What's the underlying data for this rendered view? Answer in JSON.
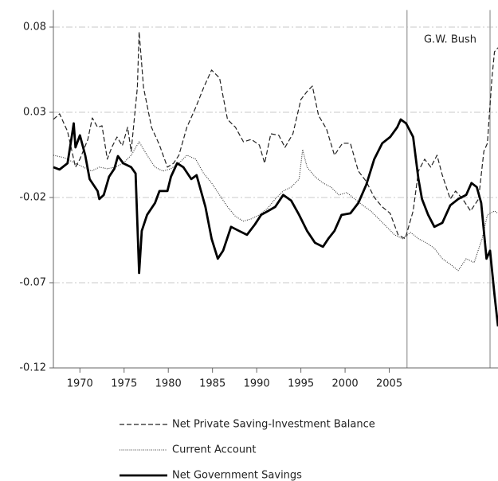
{
  "chart_data": {
    "type": "line",
    "annotation": "G.W. Bush",
    "vlines": [
      2007.0,
      2016.4
    ],
    "xlim": [
      1967.0,
      2017.3
    ],
    "xticks": [
      1970,
      1975,
      1980,
      1985,
      1990,
      1995,
      2000,
      2005
    ],
    "ylim": [
      -0.12,
      0.09
    ],
    "yticks": [
      0.08,
      0.03,
      -0.02,
      -0.07,
      -0.12
    ],
    "grid": true,
    "legend": "bottom",
    "series": [
      {
        "name": "Net Private Saving-Investment Balance",
        "color": "#222222",
        "style": "dashed",
        "x": [
          1967.0,
          1967.7,
          1968.6,
          1969.5,
          1970.0,
          1970.9,
          1971.4,
          1972.0,
          1972.5,
          1973.1,
          1973.6,
          1974.2,
          1974.8,
          1975.4,
          1975.8,
          1976.5,
          1976.7,
          1977.2,
          1978.1,
          1979.0,
          1979.9,
          1980.6,
          1981.2,
          1982.1,
          1983.1,
          1984.0,
          1984.9,
          1985.8,
          1986.7,
          1987.6,
          1988.5,
          1989.4,
          1990.3,
          1990.9,
          1991.6,
          1992.5,
          1993.2,
          1994.1,
          1995.0,
          1995.7,
          1996.3,
          1997.0,
          1997.9,
          1998.8,
          1999.7,
          2000.6,
          2001.5,
          2002.4,
          2003.3,
          2004.2,
          2005.1,
          2006.0,
          2006.8,
          2007.7,
          2008.3,
          2009.0,
          2009.7,
          2010.4,
          2011.0,
          2011.9,
          2012.5,
          2013.3,
          2014.2,
          2015.1,
          2015.7,
          2016.1,
          2016.6,
          2016.9,
          2017.3
        ],
        "values": [
          0.0258,
          0.0291,
          0.0188,
          -0.0022,
          0.0025,
          0.0141,
          0.0267,
          0.0212,
          0.0221,
          0.0025,
          0.0094,
          0.0155,
          0.0104,
          0.0212,
          0.0071,
          0.0445,
          0.0772,
          0.0445,
          0.0212,
          0.0108,
          -0.0022,
          0.0001,
          0.0048,
          0.0212,
          0.0328,
          0.0445,
          0.0548,
          0.0501,
          0.0258,
          0.0212,
          0.0127,
          0.0141,
          0.0108,
          0.0001,
          0.0174,
          0.0165,
          0.0094,
          0.0174,
          0.0375,
          0.0422,
          0.0454,
          0.0281,
          0.0202,
          0.0048,
          0.0118,
          0.0118,
          -0.0045,
          -0.0106,
          -0.0199,
          -0.0255,
          -0.0293,
          -0.0419,
          -0.0442,
          -0.0279,
          -0.0045,
          0.0025,
          -0.0022,
          0.0048,
          -0.0069,
          -0.0209,
          -0.0162,
          -0.0209,
          -0.0279,
          -0.0209,
          0.0071,
          0.0118,
          0.0492,
          0.0655,
          0.0679
        ]
      },
      {
        "name": "Current Account",
        "color": "#333333",
        "style": "dotted",
        "x": [
          1967.0,
          1968.2,
          1969.5,
          1970.4,
          1971.3,
          1972.2,
          1973.1,
          1974.0,
          1974.9,
          1975.8,
          1976.7,
          1977.6,
          1978.5,
          1979.4,
          1980.3,
          1981.2,
          1982.1,
          1983.1,
          1984.0,
          1984.9,
          1985.8,
          1986.7,
          1987.6,
          1988.5,
          1989.4,
          1990.3,
          1991.2,
          1992.1,
          1993.0,
          1993.9,
          1994.8,
          1995.2,
          1995.7,
          1996.6,
          1997.5,
          1998.4,
          1999.3,
          2000.2,
          2001.1,
          2002.0,
          2002.9,
          2003.8,
          2004.7,
          2005.6,
          2006.5,
          2007.4,
          2008.3,
          2009.2,
          2010.1,
          2011.0,
          2011.9,
          2012.8,
          2013.7,
          2014.6,
          2015.5,
          2016.1,
          2016.9,
          2017.3
        ],
        "values": [
          0.0048,
          0.0034,
          0.0001,
          -0.0022,
          -0.0045,
          -0.0022,
          -0.0031,
          -0.0022,
          0.0001,
          0.0048,
          0.0127,
          0.0048,
          -0.0022,
          -0.0045,
          -0.0031,
          0.0001,
          0.0048,
          0.0025,
          -0.0059,
          -0.0115,
          -0.0185,
          -0.0255,
          -0.0311,
          -0.0339,
          -0.0325,
          -0.0302,
          -0.0265,
          -0.0209,
          -0.0162,
          -0.0139,
          -0.0092,
          0.0081,
          -0.0022,
          -0.0078,
          -0.0115,
          -0.0139,
          -0.0185,
          -0.0171,
          -0.0209,
          -0.0246,
          -0.0279,
          -0.0325,
          -0.0372,
          -0.0419,
          -0.0442,
          -0.0405,
          -0.0442,
          -0.0466,
          -0.0498,
          -0.0559,
          -0.0592,
          -0.0629,
          -0.0559,
          -0.0582,
          -0.0442,
          -0.0302,
          -0.0279,
          -0.0293
        ]
      },
      {
        "name": "Net Government Savings",
        "color": "#000000",
        "style": "solid",
        "x": [
          1967.0,
          1967.7,
          1968.6,
          1969.1,
          1969.3,
          1969.5,
          1970.0,
          1970.6,
          1971.1,
          1972.0,
          1972.2,
          1972.7,
          1973.3,
          1973.9,
          1974.3,
          1974.9,
          1975.8,
          1976.3,
          1976.7,
          1977.0,
          1977.6,
          1978.5,
          1979.0,
          1979.9,
          1980.3,
          1981.0,
          1981.7,
          1982.6,
          1983.2,
          1983.7,
          1984.2,
          1984.9,
          1985.6,
          1986.2,
          1987.1,
          1988.0,
          1988.9,
          1989.8,
          1990.5,
          1991.3,
          1992.1,
          1993.0,
          1993.9,
          1994.8,
          1995.7,
          1996.6,
          1997.5,
          1998.1,
          1998.8,
          1999.6,
          2000.6,
          2001.5,
          2002.4,
          2003.3,
          2004.2,
          2005.1,
          2005.9,
          2006.3,
          2006.9,
          2007.7,
          2008.3,
          2008.7,
          2009.4,
          2010.1,
          2011.0,
          2011.9,
          2012.8,
          2013.7,
          2014.3,
          2014.9,
          2015.4,
          2016.0,
          2016.4,
          2016.9,
          2017.3
        ],
        "values": [
          -0.0022,
          -0.0036,
          0.0001,
          0.0165,
          0.0235,
          0.0094,
          0.0165,
          0.0048,
          -0.0092,
          -0.0162,
          -0.0209,
          -0.0185,
          -0.0078,
          -0.0031,
          0.0043,
          0.0001,
          -0.0022,
          -0.0059,
          -0.0643,
          -0.0396,
          -0.0302,
          -0.0232,
          -0.0162,
          -0.0162,
          -0.0078,
          0.0001,
          -0.0022,
          -0.0092,
          -0.0069,
          -0.0162,
          -0.0255,
          -0.0442,
          -0.0559,
          -0.0512,
          -0.0372,
          -0.0396,
          -0.0419,
          -0.0358,
          -0.0302,
          -0.0279,
          -0.0255,
          -0.0185,
          -0.0218,
          -0.0302,
          -0.0396,
          -0.0466,
          -0.0489,
          -0.0442,
          -0.0396,
          -0.0302,
          -0.0293,
          -0.0232,
          -0.0125,
          0.0025,
          0.0118,
          0.0155,
          0.0212,
          0.0258,
          0.0235,
          0.0155,
          -0.0092,
          -0.0209,
          -0.0302,
          -0.0372,
          -0.0349,
          -0.0246,
          -0.0209,
          -0.0185,
          -0.0115,
          -0.0139,
          -0.0232,
          -0.0559,
          -0.0512,
          -0.0769,
          -0.0956
        ]
      }
    ]
  }
}
